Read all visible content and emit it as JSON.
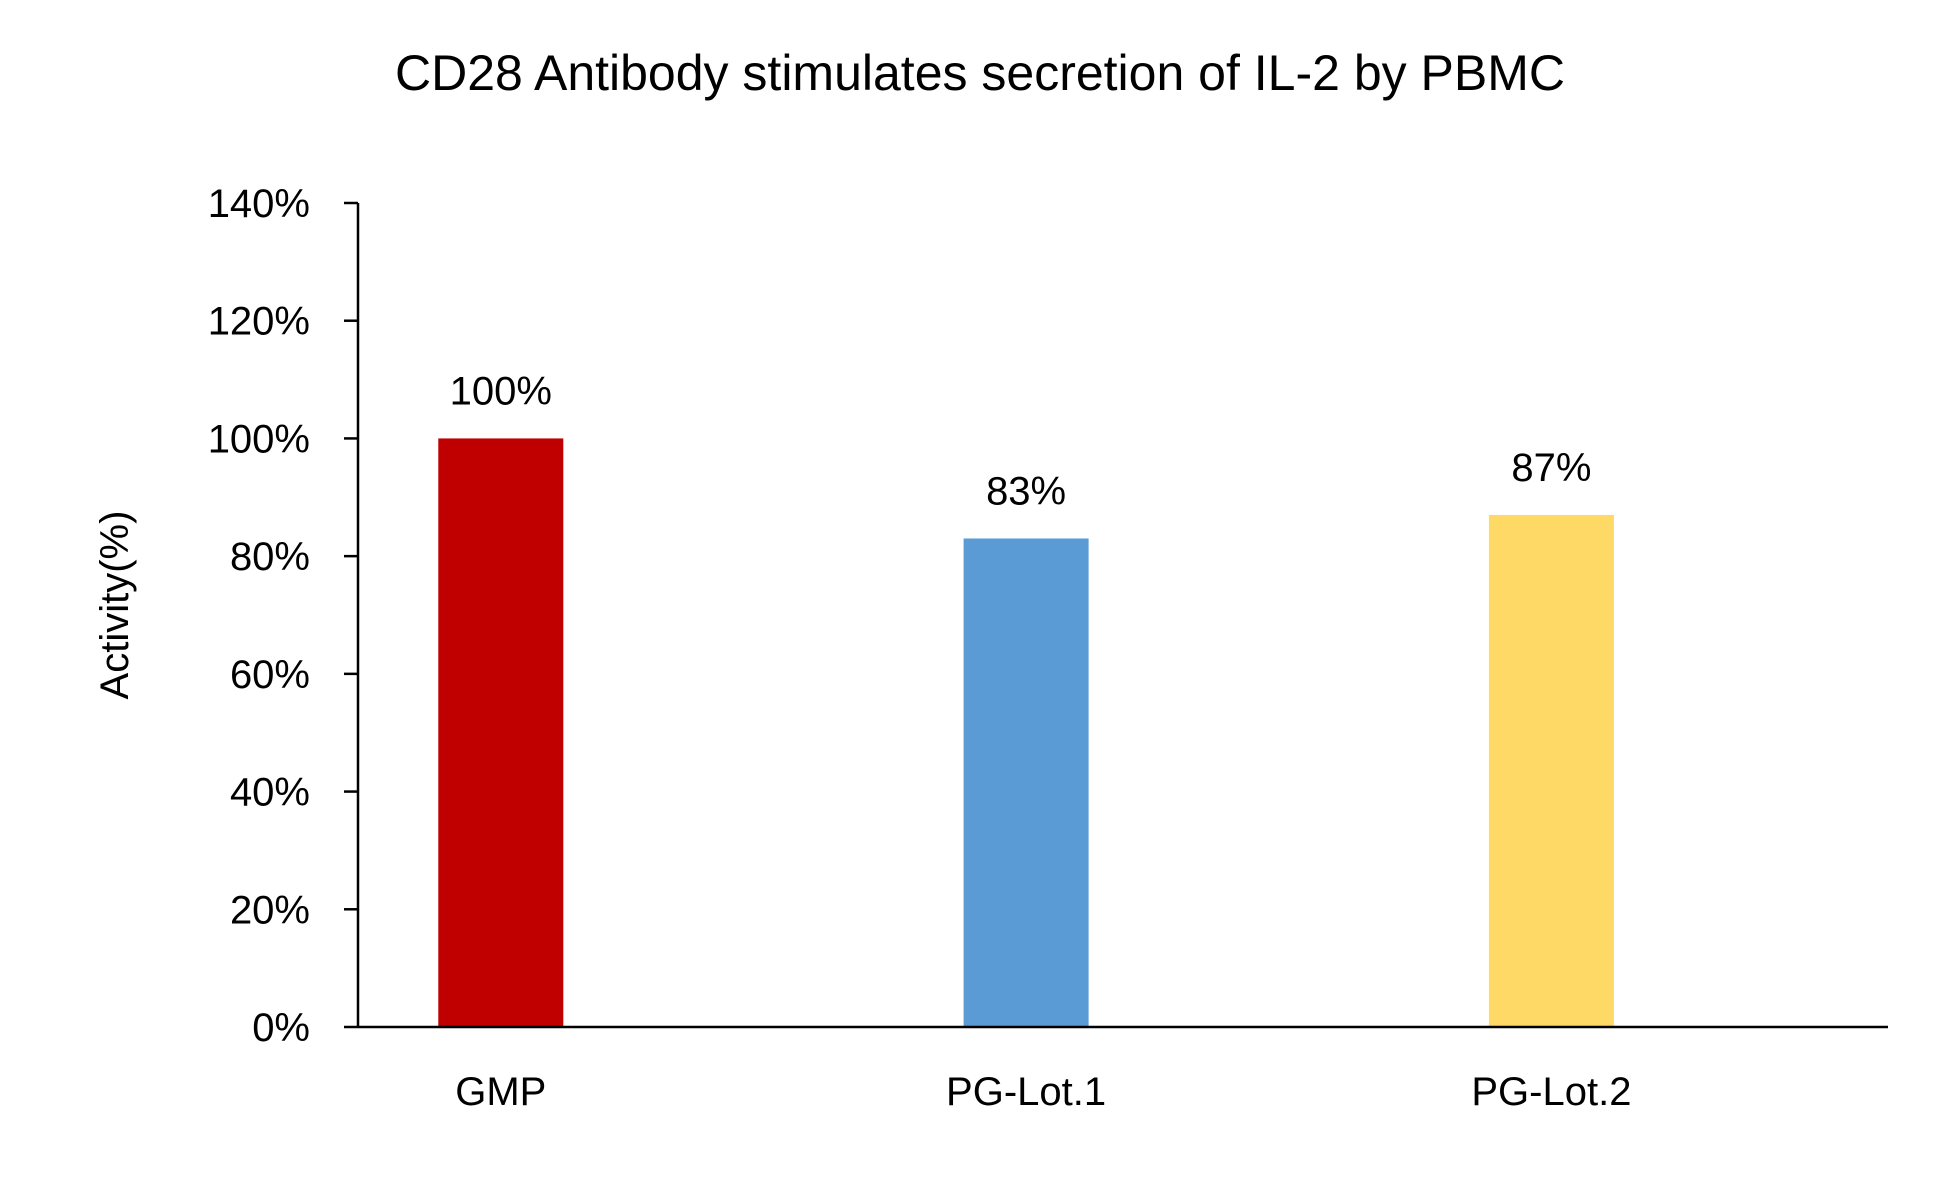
{
  "chart_data": {
    "type": "bar",
    "title": "CD28 Antibody stimulates secretion of IL-2 by PBMC",
    "ylabel": "Activity(%)",
    "xlabel": "",
    "categories": [
      "GMP",
      "PG-Lot.1",
      "PG-Lot.2"
    ],
    "values": [
      100,
      83,
      87
    ],
    "data_labels": [
      "100%",
      "83%",
      "87%"
    ],
    "colors": [
      "#C00000",
      "#5B9BD5",
      "#FFD966"
    ],
    "ylim": [
      0,
      140
    ],
    "yticks": [
      0,
      20,
      40,
      60,
      80,
      100,
      120,
      140
    ],
    "ytick_labels": [
      "0%",
      "20%",
      "40%",
      "60%",
      "80%",
      "100%",
      "120%",
      "140%"
    ],
    "grid": false,
    "legend": "none"
  }
}
